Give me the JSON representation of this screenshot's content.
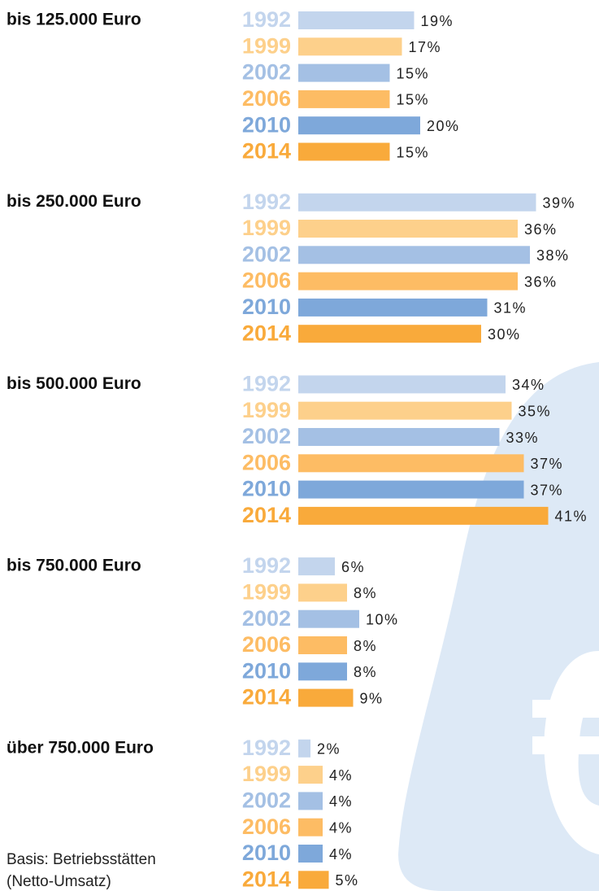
{
  "chart_data": {
    "type": "bar",
    "categories": [
      "1992",
      "1999",
      "2002",
      "2006",
      "2010",
      "2014"
    ],
    "colors": [
      "#c3d5ed",
      "#fdd08b",
      "#a4c0e4",
      "#fdbc64",
      "#7ea8da",
      "#f9aa3b"
    ],
    "series": [
      {
        "name": "bis 125.000 Euro",
        "values": [
          19,
          17,
          15,
          15,
          20,
          15
        ],
        "value_labels": [
          "19%",
          "17%",
          "15%",
          "15%",
          "20%",
          "15%"
        ]
      },
      {
        "name": "bis 250.000 Euro",
        "values": [
          39,
          36,
          38,
          36,
          31,
          30
        ],
        "value_labels": [
          "39%",
          "36%",
          "38%",
          "36%",
          "31%",
          "30%"
        ]
      },
      {
        "name": "bis 500.000 Euro",
        "values": [
          34,
          35,
          33,
          37,
          37,
          41
        ],
        "value_labels": [
          "34%",
          "35%",
          "33%",
          "37%",
          "37%",
          "41%"
        ]
      },
      {
        "name": "bis 750.000 Euro",
        "values": [
          6,
          8,
          10,
          8,
          8,
          9
        ],
        "value_labels": [
          "6%",
          "8%",
          "10%",
          "8%",
          "8%",
          "9%"
        ]
      },
      {
        "name": "über 750.000 Euro",
        "values": [
          2,
          4,
          4,
          4,
          4,
          5
        ],
        "value_labels": [
          "2%",
          "4%",
          "4%",
          "4%",
          "4%",
          "5%"
        ]
      }
    ],
    "xlim": [
      0,
      40
    ],
    "note": [
      "Basis: Betriebsstätten",
      "(Netto-Umsatz)"
    ]
  }
}
